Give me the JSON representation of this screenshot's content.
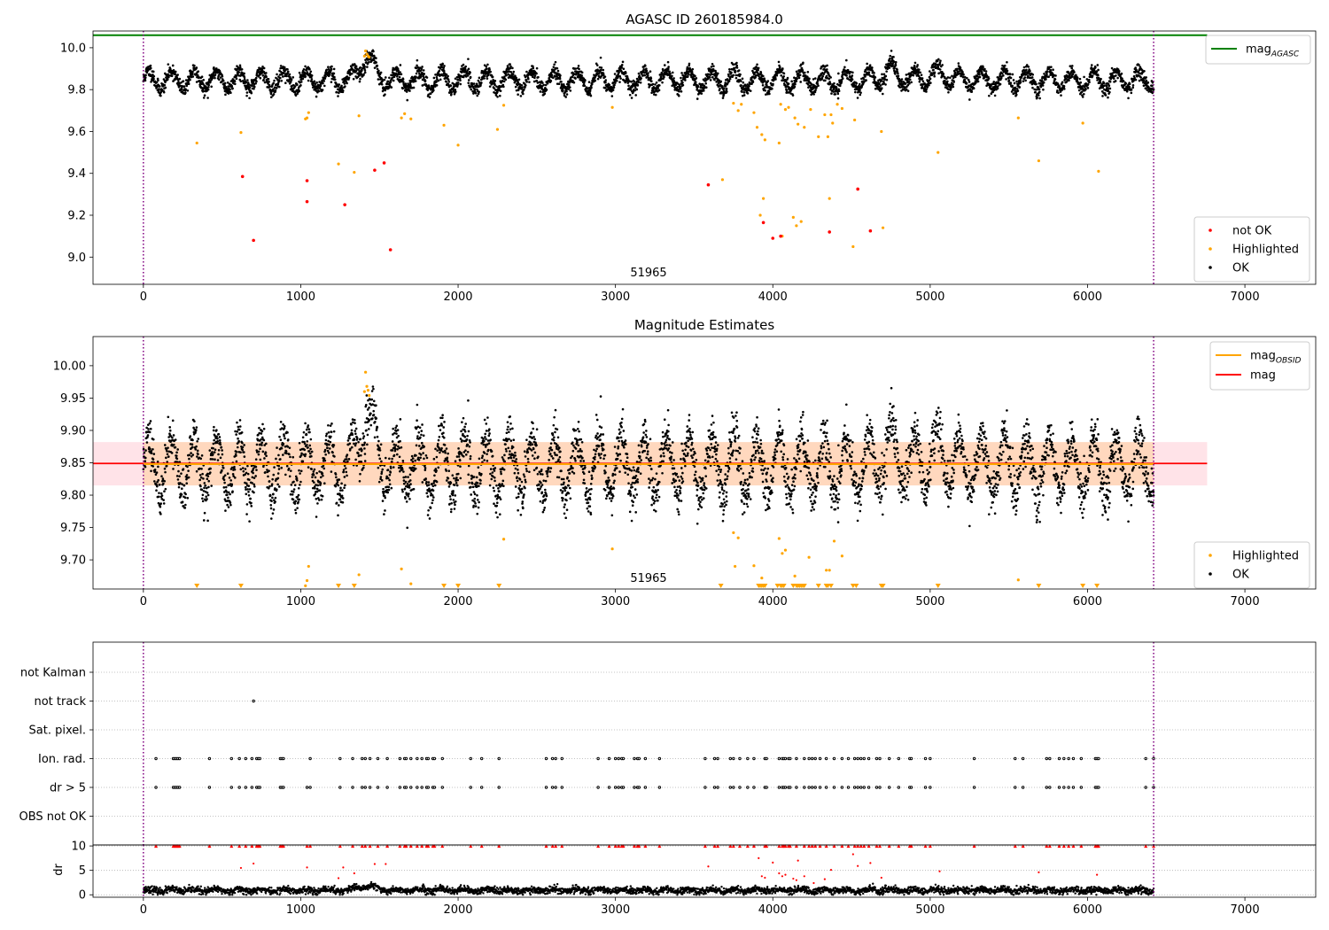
{
  "chart_data": [
    {
      "type": "scatter",
      "title": "AGASC ID 260185984.0",
      "xlim": [
        -320,
        7450
      ],
      "ylim": [
        8.87,
        10.08
      ],
      "xticks": [
        0,
        1000,
        2000,
        3000,
        4000,
        5000,
        6000,
        7000
      ],
      "yticks": [
        9.0,
        9.2,
        9.4,
        9.6,
        9.8,
        10.0
      ],
      "ytick_labels": [
        "9.0",
        "9.2",
        "9.4",
        "9.6",
        "9.8",
        "10.0"
      ],
      "annotation": {
        "text": "51965",
        "x": 3200,
        "y": 8.905
      },
      "hlines": [
        {
          "name": "mag",
          "subscript": "AGASC",
          "y": 10.06,
          "color": "#008000",
          "x_range": [
            -320,
            6760
          ]
        }
      ],
      "vlines": [
        {
          "x": 0,
          "color": "#800080"
        },
        {
          "x": 6420,
          "color": "#800080"
        }
      ],
      "legends": [
        {
          "position": "top-right",
          "entries": [
            {
              "label": "mag",
              "subscript": "AGASC",
              "kind": "line",
              "color": "#008000"
            }
          ]
        },
        {
          "position": "bottom-right",
          "entries": [
            {
              "label": "not OK",
              "kind": "marker",
              "color": "#ff0000"
            },
            {
              "label": "Highlighted",
              "kind": "marker",
              "color": "#ffa500"
            },
            {
              "label": "OK",
              "kind": "marker",
              "color": "#000000"
            }
          ]
        }
      ],
      "ok_series": {
        "name": "OK",
        "color": "#000000",
        "x_range": [
          0,
          6420
        ],
        "baseline": 9.845,
        "amplitude": 0.045,
        "period": 143,
        "noise": 0.018,
        "points": 4200,
        "bumps": [
          {
            "center": 1420,
            "width": 60,
            "height": 0.11
          },
          {
            "center": 4750,
            "width": 60,
            "height": 0.05
          },
          {
            "center": 5040,
            "width": 90,
            "height": 0.03
          }
        ]
      },
      "highlighted_series": {
        "name": "Highlighted",
        "color": "#ffa500",
        "x": [
          340,
          620,
          1030,
          1040,
          1050,
          1240,
          1340,
          1370,
          1640,
          1660,
          1700,
          1910,
          2000,
          2250,
          2290,
          2980,
          3680,
          3750,
          3780,
          3800,
          3880,
          3900,
          3920,
          3930,
          3940,
          3950,
          4040,
          4050,
          4060,
          4080,
          4100,
          4130,
          4140,
          4150,
          4160,
          4180,
          4200,
          4240,
          4290,
          4330,
          4350,
          4360,
          4370,
          4380,
          4410,
          4440,
          4510,
          4520,
          4690,
          4700,
          5050,
          5560,
          5690,
          5970,
          6070,
          1405,
          1412,
          1420,
          1428,
          1435
        ],
        "y": [
          9.545,
          9.595,
          9.66,
          9.665,
          9.69,
          9.445,
          9.405,
          9.675,
          9.665,
          9.685,
          9.66,
          9.63,
          9.535,
          9.61,
          9.725,
          9.715,
          9.37,
          9.735,
          9.7,
          9.73,
          9.69,
          9.62,
          9.2,
          9.585,
          9.28,
          9.56,
          9.545,
          9.73,
          9.1,
          9.705,
          9.715,
          9.19,
          9.665,
          9.15,
          9.635,
          9.17,
          9.62,
          9.705,
          9.575,
          9.68,
          9.575,
          9.28,
          9.68,
          9.64,
          9.73,
          9.71,
          9.05,
          9.655,
          9.6,
          9.14,
          9.5,
          9.665,
          9.46,
          9.64,
          9.41,
          9.96,
          9.985,
          9.97,
          9.96,
          9.955
        ]
      },
      "not_ok_series": {
        "name": "not OK",
        "color": "#ff0000",
        "x": [
          630,
          700,
          1040,
          1040,
          1280,
          1470,
          1530,
          1570,
          3590,
          3940,
          4000,
          4050,
          4360,
          4540,
          4620
        ],
        "y": [
          9.385,
          9.08,
          9.365,
          9.265,
          9.25,
          9.415,
          9.45,
          9.035,
          9.345,
          9.165,
          9.09,
          9.1,
          9.12,
          9.325,
          9.125
        ]
      }
    },
    {
      "type": "scatter",
      "title": "Magnitude Estimates",
      "xlim": [
        -320,
        7450
      ],
      "ylim": [
        9.655,
        10.045
      ],
      "xticks": [
        0,
        1000,
        2000,
        3000,
        4000,
        5000,
        6000,
        7000
      ],
      "yticks": [
        9.7,
        9.75,
        9.8,
        9.85,
        9.9,
        9.95,
        10.0
      ],
      "ytick_labels": [
        "9.70",
        "9.75",
        "9.80",
        "9.85",
        "9.90",
        "9.95",
        "10.00"
      ],
      "annotation": {
        "text": "51965",
        "x": 3200,
        "y": 9.667
      },
      "bands": [
        {
          "y": [
            9.815,
            9.882
          ],
          "x_range": [
            -320,
            6760
          ],
          "color": "#ffc0cb",
          "opacity": 0.45
        },
        {
          "y": [
            9.815,
            9.882
          ],
          "x_range": [
            0,
            6420
          ],
          "color": "#ffa500",
          "opacity": 0.18
        }
      ],
      "hlines": [
        {
          "name": "mag",
          "y": 9.849,
          "color": "#ff0000",
          "x_range": [
            -320,
            6760
          ],
          "width": 1.8
        },
        {
          "name": "mag",
          "subscript": "OBSID",
          "y": 9.848,
          "color": "#ffa500",
          "x_range": [
            0,
            6420
          ],
          "width": 2
        }
      ],
      "vlines": [
        {
          "x": 0,
          "color": "#800080"
        },
        {
          "x": 6420,
          "color": "#800080"
        }
      ],
      "legends": [
        {
          "position": "top-right",
          "entries": [
            {
              "label": "mag",
              "subscript": "OBSID",
              "kind": "line",
              "color": "#ffa500"
            },
            {
              "label": "mag",
              "kind": "line",
              "color": "#ff0000"
            }
          ]
        },
        {
          "position": "bottom-right",
          "entries": [
            {
              "label": "Highlighted",
              "kind": "marker",
              "color": "#ffa500"
            },
            {
              "label": "OK",
              "kind": "marker",
              "color": "#000000"
            }
          ]
        }
      ],
      "ok_series": {
        "name": "OK",
        "color": "#000000",
        "x_range": [
          0,
          6420
        ],
        "baseline": 9.845,
        "amplitude": 0.045,
        "period": 143,
        "noise": 0.018,
        "points": 4200,
        "bumps": [
          {
            "center": 1420,
            "width": 60,
            "height": 0.08
          },
          {
            "center": 4750,
            "width": 60,
            "height": 0.03
          },
          {
            "center": 5040,
            "width": 90,
            "height": 0.02
          }
        ]
      },
      "highlighted_series": {
        "name": "Highlighted",
        "color": "#ffa500",
        "x": [
          1030,
          1040,
          1050,
          1370,
          1640,
          1700,
          2290,
          2980,
          3750,
          3760,
          3780,
          3880,
          3930,
          4040,
          4060,
          4080,
          4140,
          4230,
          4340,
          4360,
          4390,
          4440,
          5560,
          1405,
          1412,
          1420,
          1428,
          1435
        ],
        "y": [
          9.66,
          9.668,
          9.69,
          9.677,
          9.686,
          9.663,
          9.732,
          9.717,
          9.742,
          9.69,
          9.734,
          9.691,
          9.672,
          9.733,
          9.71,
          9.715,
          9.675,
          9.704,
          9.684,
          9.684,
          9.729,
          9.706,
          9.669,
          9.96,
          9.99,
          9.968,
          9.962,
          9.954
        ]
      },
      "below_range": {
        "name": "Highlighted",
        "color": "#ffa500",
        "x": [
          340,
          620,
          1240,
          1340,
          1910,
          2000,
          2260,
          3670,
          3910,
          3920,
          3930,
          3940,
          3950,
          4030,
          4050,
          4060,
          4070,
          4130,
          4150,
          4160,
          4170,
          4180,
          4190,
          4200,
          4290,
          4340,
          4350,
          4370,
          4510,
          4530,
          4690,
          4700,
          5050,
          5690,
          5970,
          6060
        ]
      }
    },
    {
      "type": "scatter",
      "title": "",
      "xlim": [
        -320,
        7450
      ],
      "xticks": [
        0,
        1000,
        2000,
        3000,
        4000,
        5000,
        6000,
        7000
      ],
      "vlines": [
        {
          "x": 0,
          "color": "#800080"
        },
        {
          "x": 6420,
          "color": "#800080"
        }
      ],
      "flag_rows": [
        "not Kalman",
        "not track",
        "Sat. pixel.",
        "Ion. rad.",
        "dr > 5",
        "OBS not OK"
      ],
      "flag_points": {
        "not track": [
          700
        ],
        "Ion. rad.": [
          80,
          190,
          200,
          210,
          220,
          230,
          420,
          560,
          610,
          650,
          690,
          720,
          730,
          740,
          870,
          880,
          890,
          1060,
          1250,
          1330,
          1390,
          1410,
          1440,
          1490,
          1550,
          1630,
          1660,
          1670,
          1700,
          1740,
          1770,
          1800,
          1810,
          1840,
          1850,
          1900,
          2080,
          2150,
          2260,
          2560,
          2600,
          2620,
          2660,
          2890,
          2960,
          3000,
          3020,
          3040,
          3050,
          3120,
          3140,
          3150,
          3190,
          3280,
          3570,
          3630,
          3650,
          3730,
          3750,
          3790,
          3840,
          3880,
          3950,
          3960,
          4040,
          4060,
          4070,
          4080,
          4100,
          4110,
          4150,
          4200,
          4230,
          4250,
          4270,
          4300,
          4340,
          4390,
          4440,
          4480,
          4520,
          4540,
          4560,
          4580,
          4610,
          4660,
          4680,
          4740,
          4800,
          4870,
          4880,
          4970,
          5000,
          5280,
          5540,
          5590,
          5740,
          5760,
          5820,
          5850,
          5880,
          5910,
          5960,
          6050,
          6060,
          6070,
          6370,
          6420
        ],
        "dr > 5": [
          80,
          190,
          200,
          210,
          220,
          230,
          420,
          560,
          610,
          650,
          690,
          720,
          730,
          740,
          870,
          880,
          890,
          1040,
          1060,
          1250,
          1330,
          1390,
          1410,
          1440,
          1490,
          1550,
          1630,
          1660,
          1670,
          1700,
          1740,
          1770,
          1800,
          1810,
          1840,
          1850,
          1900,
          2080,
          2150,
          2260,
          2560,
          2600,
          2620,
          2660,
          2890,
          2960,
          3000,
          3020,
          3040,
          3050,
          3120,
          3140,
          3150,
          3190,
          3280,
          3570,
          3630,
          3650,
          3730,
          3750,
          3790,
          3840,
          3880,
          3950,
          3960,
          4040,
          4060,
          4070,
          4080,
          4100,
          4110,
          4150,
          4200,
          4230,
          4250,
          4270,
          4300,
          4340,
          4390,
          4440,
          4480,
          4520,
          4540,
          4560,
          4580,
          4610,
          4660,
          4680,
          4740,
          4800,
          4870,
          4880,
          4970,
          5000,
          5280,
          5540,
          5590,
          5740,
          5760,
          5820,
          5850,
          5880,
          5910,
          5960,
          6050,
          6060,
          6070,
          6370,
          6420
        ]
      }
    },
    {
      "type": "scatter",
      "title": "",
      "ylabel": "dr",
      "xlim": [
        -320,
        7450
      ],
      "ylim": [
        -0.5,
        10.2
      ],
      "xticks": [
        0,
        1000,
        2000,
        3000,
        4000,
        5000,
        6000,
        7000
      ],
      "yticks": [
        0,
        5,
        10
      ],
      "ytick_labels": [
        "0",
        "5",
        "10"
      ],
      "vlines": [
        {
          "x": 0,
          "color": "#800080"
        },
        {
          "x": 6420,
          "color": "#800080"
        }
      ],
      "ok_series": {
        "name": "dr",
        "color": "#000000",
        "x_range": [
          0,
          6420
        ],
        "baseline": 0.9,
        "amplitude": 0.25,
        "period": 143,
        "noise": 0.35,
        "points": 3600,
        "bumps": [
          {
            "center": 1420,
            "width": 80,
            "height": 0.8
          }
        ]
      },
      "clipped": {
        "color": "#ff0000",
        "y": 10,
        "x": [
          80,
          190,
          200,
          210,
          220,
          230,
          420,
          560,
          610,
          650,
          690,
          720,
          730,
          740,
          870,
          880,
          890,
          1040,
          1060,
          1250,
          1330,
          1390,
          1410,
          1440,
          1490,
          1550,
          1630,
          1660,
          1670,
          1700,
          1740,
          1770,
          1800,
          1810,
          1840,
          1850,
          1900,
          2080,
          2150,
          2260,
          2560,
          2600,
          2620,
          2660,
          2890,
          2960,
          3000,
          3020,
          3040,
          3050,
          3120,
          3140,
          3150,
          3190,
          3280,
          3570,
          3630,
          3650,
          3730,
          3750,
          3790,
          3840,
          3880,
          3950,
          3960,
          4040,
          4060,
          4070,
          4080,
          4100,
          4110,
          4150,
          4200,
          4230,
          4250,
          4270,
          4300,
          4340,
          4390,
          4440,
          4480,
          4520,
          4540,
          4560,
          4580,
          4610,
          4660,
          4680,
          4740,
          4800,
          4870,
          4880,
          4970,
          5000,
          5280,
          5540,
          5590,
          5740,
          5760,
          5820,
          5850,
          5880,
          5910,
          5960,
          6050,
          6060,
          6070,
          6370,
          6420
        ]
      },
      "red_points": {
        "color": "#ff0000",
        "x": [
          620,
          700,
          1040,
          1240,
          1270,
          1340,
          1470,
          1540,
          3590,
          3910,
          3930,
          3950,
          4000,
          4040,
          4060,
          4080,
          4130,
          4150,
          4160,
          4200,
          4260,
          4330,
          4370,
          4510,
          4540,
          4620,
          4690,
          5060,
          5690,
          6060
        ],
        "y": [
          5.5,
          6.4,
          5.6,
          3.4,
          5.6,
          4.4,
          6.3,
          6.3,
          5.8,
          7.5,
          3.8,
          3.5,
          6.6,
          4.4,
          3.8,
          4.1,
          3.3,
          3.0,
          7.0,
          3.8,
          2.4,
          3.2,
          5.1,
          8.3,
          5.9,
          6.5,
          3.5,
          4.8,
          4.6,
          4.1
        ]
      }
    }
  ]
}
